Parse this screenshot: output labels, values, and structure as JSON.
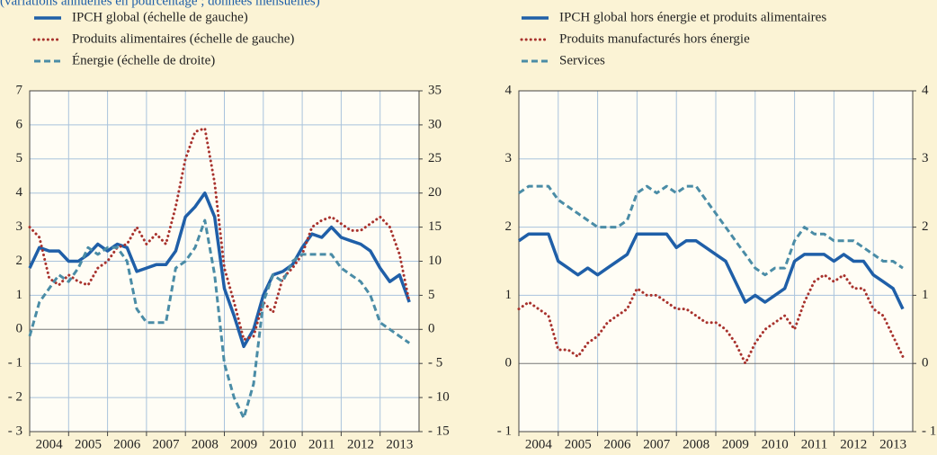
{
  "chart_data": [
    {
      "type": "line",
      "subtitle": "(variations annuelles en pourcentage ; données mensuelles)",
      "x": [
        2004,
        2004.25,
        2004.5,
        2004.75,
        2005,
        2005.25,
        2005.5,
        2005.75,
        2006,
        2006.25,
        2006.5,
        2006.75,
        2007,
        2007.25,
        2007.5,
        2007.75,
        2008,
        2008.25,
        2008.5,
        2008.75,
        2009,
        2009.25,
        2009.5,
        2009.75,
        2010,
        2010.25,
        2010.5,
        2010.75,
        2011,
        2011.25,
        2011.5,
        2011.75,
        2012,
        2012.25,
        2012.5,
        2012.75,
        2013,
        2013.25,
        2013.5,
        2013.75
      ],
      "xlim": [
        2004,
        2014
      ],
      "xticks": [
        2004,
        2005,
        2006,
        2007,
        2008,
        2009,
        2010,
        2011,
        2012,
        2013
      ],
      "ylim": [
        -3,
        7
      ],
      "yticks": [
        {
          "value": -3,
          "label": "- 3"
        },
        {
          "value": -2,
          "label": "- 2"
        },
        {
          "value": -1,
          "label": "- 1"
        },
        0,
        1,
        2,
        3,
        4,
        5,
        6,
        7
      ],
      "y2lim": [
        -15,
        35
      ],
      "y2ticks": [
        {
          "value": -15,
          "label": "- 15"
        },
        {
          "value": -10,
          "label": "- 10"
        },
        {
          "value": -5,
          "label": "- 5"
        },
        0,
        5,
        10,
        15,
        20,
        25,
        30,
        35
      ],
      "grid": true,
      "series": [
        {
          "name": "IPCH global (échelle de gauche)",
          "color": "#1f5fa8",
          "dash": "solid",
          "values": [
            1.8,
            2.4,
            2.3,
            2.3,
            2.0,
            2.0,
            2.2,
            2.5,
            2.3,
            2.5,
            2.4,
            1.7,
            1.8,
            1.9,
            1.9,
            2.3,
            3.3,
            3.6,
            4.0,
            3.3,
            1.2,
            0.4,
            -0.5,
            0.0,
            1.0,
            1.6,
            1.7,
            1.9,
            2.4,
            2.8,
            2.7,
            3.0,
            2.7,
            2.6,
            2.5,
            2.3,
            1.8,
            1.4,
            1.6,
            0.8
          ]
        },
        {
          "name": "Produits alimentaires (échelle de gauche)",
          "color": "#a8322d",
          "dash": "dotted",
          "values": [
            3.0,
            2.7,
            1.5,
            1.3,
            1.6,
            1.4,
            1.3,
            1.8,
            2.0,
            2.4,
            2.5,
            3.0,
            2.5,
            2.8,
            2.5,
            3.6,
            5.0,
            5.8,
            5.9,
            4.3,
            1.8,
            0.8,
            -0.3,
            -0.2,
            0.8,
            0.5,
            1.5,
            1.8,
            2.2,
            3.0,
            3.2,
            3.3,
            3.1,
            2.9,
            2.9,
            3.1,
            3.3,
            3.0,
            2.2,
            0.8
          ]
        },
        {
          "name": "Énergie (échelle de droite)",
          "color": "#4a8ca6",
          "dash": "dashed",
          "axis": "y2",
          "values": [
            -1,
            4,
            6,
            8,
            7,
            9,
            12,
            11,
            12,
            12,
            10,
            3,
            1,
            1,
            1,
            9,
            10,
            12,
            16,
            8,
            -5,
            -10,
            -13,
            -8,
            4,
            8,
            7,
            10,
            11,
            11,
            11,
            11,
            9,
            8,
            7,
            5,
            1,
            0,
            -1,
            -2
          ]
        }
      ]
    },
    {
      "type": "line",
      "x": [
        2004,
        2004.25,
        2004.5,
        2004.75,
        2005,
        2005.25,
        2005.5,
        2005.75,
        2006,
        2006.25,
        2006.5,
        2006.75,
        2007,
        2007.25,
        2007.5,
        2007.75,
        2008,
        2008.25,
        2008.5,
        2008.75,
        2009,
        2009.25,
        2009.5,
        2009.75,
        2010,
        2010.25,
        2010.5,
        2010.75,
        2011,
        2011.25,
        2011.5,
        2011.75,
        2012,
        2012.25,
        2012.5,
        2012.75,
        2013,
        2013.25,
        2013.5,
        2013.75
      ],
      "xlim": [
        2004,
        2014
      ],
      "xticks": [
        2004,
        2005,
        2006,
        2007,
        2008,
        2009,
        2010,
        2011,
        2012,
        2013
      ],
      "ylim": [
        -1,
        4
      ],
      "yticks": [
        {
          "value": -1,
          "label": "- 1"
        },
        0,
        1,
        2,
        3,
        4
      ],
      "y2lim": [
        -1,
        4
      ],
      "y2ticks": [
        {
          "value": -1,
          "label": "- 1"
        },
        0,
        1,
        2,
        3,
        4
      ],
      "grid": true,
      "series": [
        {
          "name": "IPCH global hors énergie et produits alimentaires",
          "color": "#1f5fa8",
          "dash": "solid",
          "values": [
            1.8,
            1.9,
            1.9,
            1.9,
            1.5,
            1.4,
            1.3,
            1.4,
            1.3,
            1.4,
            1.5,
            1.6,
            1.9,
            1.9,
            1.9,
            1.9,
            1.7,
            1.8,
            1.8,
            1.7,
            1.6,
            1.5,
            1.2,
            0.9,
            1.0,
            0.9,
            1.0,
            1.1,
            1.5,
            1.6,
            1.6,
            1.6,
            1.5,
            1.6,
            1.5,
            1.5,
            1.3,
            1.2,
            1.1,
            0.8
          ]
        },
        {
          "name": "Produits manufacturés hors énergie",
          "color": "#a8322d",
          "dash": "dotted",
          "values": [
            0.8,
            0.9,
            0.8,
            0.7,
            0.2,
            0.2,
            0.1,
            0.3,
            0.4,
            0.6,
            0.7,
            0.8,
            1.1,
            1.0,
            1.0,
            0.9,
            0.8,
            0.8,
            0.7,
            0.6,
            0.6,
            0.5,
            0.3,
            0.0,
            0.3,
            0.5,
            0.6,
            0.7,
            0.5,
            0.9,
            1.2,
            1.3,
            1.2,
            1.3,
            1.1,
            1.1,
            0.8,
            0.7,
            0.4,
            0.1
          ]
        },
        {
          "name": "Services",
          "color": "#4a8ca6",
          "dash": "dashed",
          "values": [
            2.5,
            2.6,
            2.6,
            2.6,
            2.4,
            2.3,
            2.2,
            2.1,
            2.0,
            2.0,
            2.0,
            2.1,
            2.5,
            2.6,
            2.5,
            2.6,
            2.5,
            2.6,
            2.6,
            2.4,
            2.2,
            2.0,
            1.8,
            1.6,
            1.4,
            1.3,
            1.4,
            1.4,
            1.8,
            2.0,
            1.9,
            1.9,
            1.8,
            1.8,
            1.8,
            1.7,
            1.6,
            1.5,
            1.5,
            1.4
          ]
        }
      ]
    }
  ]
}
